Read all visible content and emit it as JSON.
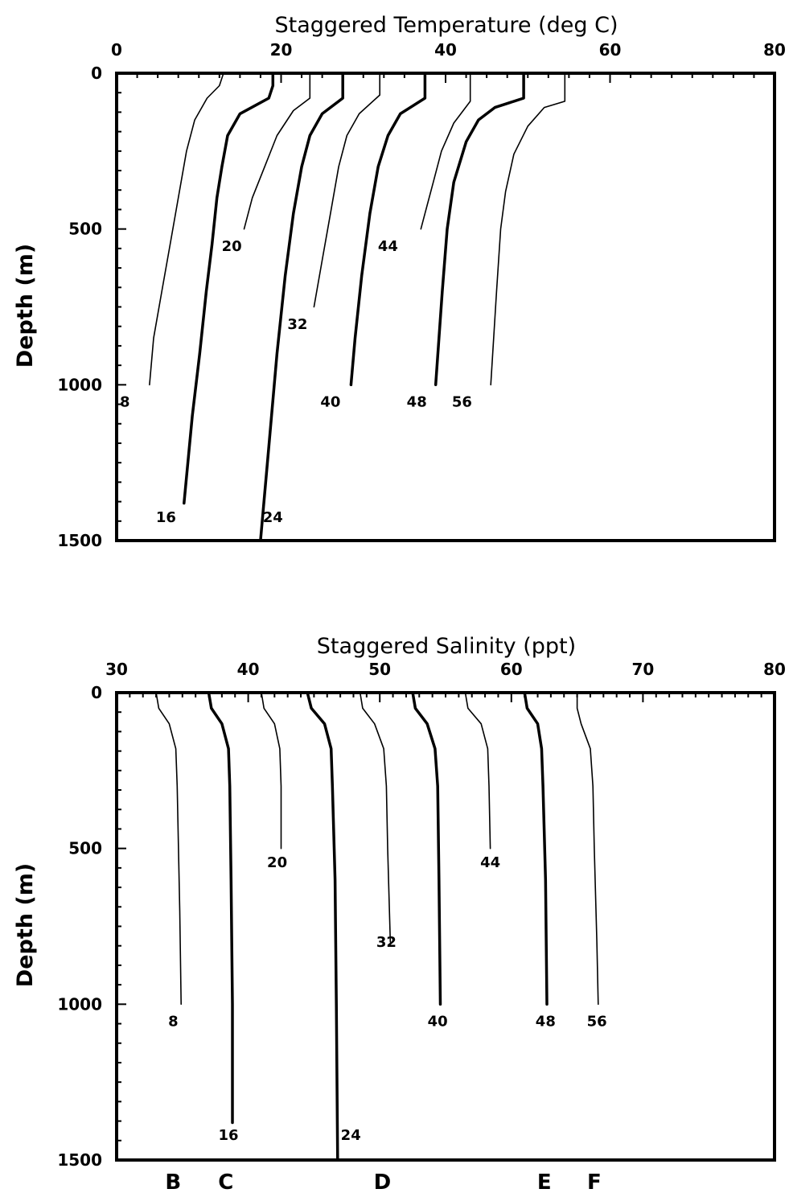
{
  "chart_data": [
    {
      "type": "line",
      "title": "Staggered Temperature (deg C)",
      "xlabel": "Staggered Temperature (deg C)",
      "ylabel": "Depth (m)",
      "xlim": [
        0,
        80
      ],
      "ylim": [
        0,
        1500
      ],
      "y_inverted": true,
      "x_axis_position": "top",
      "xticks": [
        "0",
        "20",
        "40",
        "60",
        "80"
      ],
      "yticks": [
        "0",
        "500",
        "1000",
        "1500"
      ],
      "grid": false,
      "series": [
        {
          "name": "8",
          "weight": "thin",
          "label_at": [
            1,
            1055
          ],
          "points": [
            [
              13,
              0
            ],
            [
              12.5,
              40
            ],
            [
              11,
              80
            ],
            [
              9.5,
              150
            ],
            [
              8.5,
              250
            ],
            [
              7.5,
              400
            ],
            [
              6.5,
              550
            ],
            [
              5.5,
              700
            ],
            [
              4.5,
              850
            ],
            [
              4,
              1000
            ]
          ]
        },
        {
          "name": "16",
          "weight": "thick",
          "label_at": [
            6,
            1425
          ],
          "points": [
            [
              19,
              0
            ],
            [
              19,
              40
            ],
            [
              18.5,
              80
            ],
            [
              15,
              130
            ],
            [
              13.5,
              200
            ],
            [
              12.8,
              300
            ],
            [
              12.2,
              400
            ],
            [
              11.6,
              550
            ],
            [
              10.9,
              700
            ],
            [
              10.1,
              900
            ],
            [
              9.2,
              1100
            ],
            [
              8.2,
              1380
            ]
          ]
        },
        {
          "name": "20",
          "weight": "thin",
          "label_at": [
            14,
            555
          ],
          "points": [
            [
              23.5,
              0
            ],
            [
              23.5,
              80
            ],
            [
              21.5,
              120
            ],
            [
              19.5,
              200
            ],
            [
              18,
              300
            ],
            [
              16.5,
              400
            ],
            [
              15.5,
              500
            ]
          ]
        },
        {
          "name": "24",
          "weight": "thick",
          "label_at": [
            19,
            1425
          ],
          "points": [
            [
              27.5,
              0
            ],
            [
              27.5,
              80
            ],
            [
              25,
              130
            ],
            [
              23.5,
              200
            ],
            [
              22.5,
              300
            ],
            [
              21.5,
              450
            ],
            [
              20.5,
              650
            ],
            [
              19.5,
              900
            ],
            [
              18.5,
              1200
            ],
            [
              17.5,
              1500
            ]
          ]
        },
        {
          "name": "32",
          "weight": "thin",
          "label_at": [
            22,
            805
          ],
          "points": [
            [
              32,
              0
            ],
            [
              32,
              70
            ],
            [
              29.5,
              130
            ],
            [
              28,
              200
            ],
            [
              27,
              300
            ],
            [
              26,
              450
            ],
            [
              25,
              600
            ],
            [
              24,
              750
            ]
          ]
        },
        {
          "name": "40",
          "weight": "thick",
          "label_at": [
            26,
            1055
          ],
          "points": [
            [
              37.5,
              0
            ],
            [
              37.5,
              80
            ],
            [
              34.5,
              130
            ],
            [
              33,
              200
            ],
            [
              31.8,
              300
            ],
            [
              30.8,
              450
            ],
            [
              29.8,
              650
            ],
            [
              29,
              850
            ],
            [
              28.5,
              1000
            ]
          ]
        },
        {
          "name": "44",
          "weight": "thin",
          "label_at": [
            33,
            555
          ],
          "points": [
            [
              43,
              0
            ],
            [
              43,
              90
            ],
            [
              41,
              160
            ],
            [
              39.5,
              250
            ],
            [
              38.5,
              350
            ],
            [
              37.5,
              450
            ],
            [
              37,
              500
            ]
          ]
        },
        {
          "name": "48",
          "weight": "thick",
          "label_at": [
            36.5,
            1055
          ],
          "points": [
            [
              49.5,
              0
            ],
            [
              49.5,
              80
            ],
            [
              46,
              110
            ],
            [
              44,
              150
            ],
            [
              42.5,
              220
            ],
            [
              41,
              350
            ],
            [
              40.2,
              500
            ],
            [
              39.6,
              700
            ],
            [
              38.8,
              1000
            ]
          ]
        },
        {
          "name": "56",
          "weight": "thin",
          "label_at": [
            42,
            1055
          ],
          "points": [
            [
              54.5,
              0
            ],
            [
              54.5,
              90
            ],
            [
              52,
              110
            ],
            [
              50,
              170
            ],
            [
              48.3,
              260
            ],
            [
              47.3,
              380
            ],
            [
              46.7,
              500
            ],
            [
              46.2,
              700
            ],
            [
              45.5,
              1000
            ]
          ]
        }
      ]
    },
    {
      "type": "line",
      "title": "Staggered Salinity (ppt)",
      "xlabel": "Staggered Salinity (ppt)",
      "ylabel": "Depth (m)",
      "xlim": [
        30,
        80
      ],
      "ylim": [
        0,
        1500
      ],
      "y_inverted": true,
      "x_axis_position": "top",
      "xticks": [
        "30",
        "40",
        "50",
        "60",
        "70",
        "80"
      ],
      "yticks": [
        "0",
        "500",
        "1000",
        "1500"
      ],
      "grid": false,
      "bottom_labels": [
        {
          "text": "B",
          "x": 34.3
        },
        {
          "text": "C",
          "x": 38.3
        },
        {
          "text": "D",
          "x": 50.2
        },
        {
          "text": "E",
          "x": 62.5
        },
        {
          "text": "F",
          "x": 66.3
        }
      ],
      "series": [
        {
          "name": "8",
          "weight": "thin",
          "label_at": [
            34.3,
            1055
          ],
          "points": [
            [
              33,
              0
            ],
            [
              33.2,
              50
            ],
            [
              34,
              100
            ],
            [
              34.5,
              180
            ],
            [
              34.6,
              300
            ],
            [
              34.7,
              500
            ],
            [
              34.8,
              700
            ],
            [
              34.9,
              1000
            ]
          ]
        },
        {
          "name": "16",
          "weight": "thick",
          "label_at": [
            38.5,
            1420
          ],
          "points": [
            [
              37,
              0
            ],
            [
              37.2,
              50
            ],
            [
              38,
              100
            ],
            [
              38.5,
              180
            ],
            [
              38.6,
              300
            ],
            [
              38.7,
              600
            ],
            [
              38.8,
              1000
            ],
            [
              38.8,
              1380
            ]
          ]
        },
        {
          "name": "20",
          "weight": "thin",
          "label_at": [
            42.2,
            545
          ],
          "points": [
            [
              41,
              0
            ],
            [
              41.2,
              50
            ],
            [
              42,
              100
            ],
            [
              42.4,
              180
            ],
            [
              42.5,
              300
            ],
            [
              42.5,
              500
            ]
          ]
        },
        {
          "name": "24",
          "weight": "thick",
          "label_at": [
            47.8,
            1420
          ],
          "points": [
            [
              44.5,
              0
            ],
            [
              44.8,
              50
            ],
            [
              45.8,
              100
            ],
            [
              46.3,
              180
            ],
            [
              46.4,
              300
            ],
            [
              46.6,
              600
            ],
            [
              46.7,
              1000
            ],
            [
              46.8,
              1500
            ]
          ]
        },
        {
          "name": "32",
          "weight": "thin",
          "label_at": [
            50.5,
            800
          ],
          "points": [
            [
              48.5,
              0
            ],
            [
              48.7,
              50
            ],
            [
              49.6,
              100
            ],
            [
              50.3,
              180
            ],
            [
              50.5,
              300
            ],
            [
              50.6,
              500
            ],
            [
              50.8,
              800
            ]
          ]
        },
        {
          "name": "40",
          "weight": "thick",
          "label_at": [
            54.4,
            1055
          ],
          "points": [
            [
              52.5,
              0
            ],
            [
              52.7,
              50
            ],
            [
              53.6,
              100
            ],
            [
              54.2,
              180
            ],
            [
              54.4,
              300
            ],
            [
              54.5,
              600
            ],
            [
              54.6,
              1000
            ]
          ]
        },
        {
          "name": "44",
          "weight": "thin",
          "label_at": [
            58.4,
            545
          ],
          "points": [
            [
              56.5,
              0
            ],
            [
              56.7,
              50
            ],
            [
              57.7,
              100
            ],
            [
              58.2,
              180
            ],
            [
              58.3,
              300
            ],
            [
              58.4,
              500
            ]
          ]
        },
        {
          "name": "48",
          "weight": "thick",
          "label_at": [
            62.6,
            1055
          ],
          "points": [
            [
              61,
              0
            ],
            [
              61.2,
              50
            ],
            [
              62,
              100
            ],
            [
              62.3,
              180
            ],
            [
              62.4,
              300
            ],
            [
              62.6,
              600
            ],
            [
              62.7,
              1000
            ]
          ]
        },
        {
          "name": "56",
          "weight": "thin",
          "label_at": [
            66.5,
            1055
          ],
          "points": [
            [
              65,
              0
            ],
            [
              65,
              50
            ],
            [
              65.3,
              100
            ],
            [
              66,
              180
            ],
            [
              66.2,
              300
            ],
            [
              66.3,
              500
            ],
            [
              66.5,
              800
            ],
            [
              66.6,
              1000
            ]
          ]
        }
      ]
    }
  ]
}
